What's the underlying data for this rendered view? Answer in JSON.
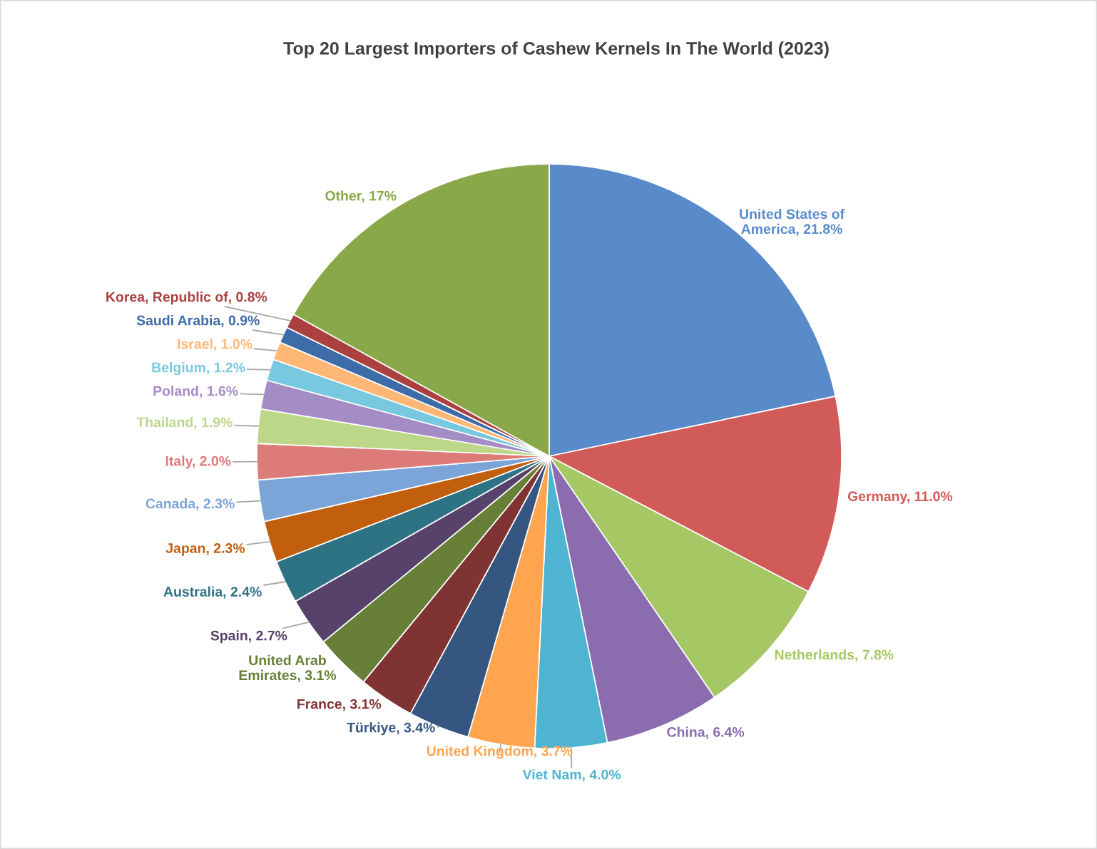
{
  "chart_data": {
    "type": "pie",
    "title": "Top 20 Largest Importers of Cashew Kernels In The World (2023)",
    "categories": [
      "United States of America",
      "Germany",
      "Netherlands",
      "China",
      "Viet Nam",
      "United Kingdom",
      "Türkiye",
      "France",
      "United Arab Emirates",
      "Spain",
      "Australia",
      "Japan",
      "Canada",
      "Italy",
      "Thailand",
      "Poland",
      "Belgium",
      "Israel",
      "Saudi Arabia",
      "Korea, Republic of",
      "Other"
    ],
    "values": [
      21.8,
      11.0,
      7.8,
      6.4,
      4.0,
      3.7,
      3.4,
      3.1,
      3.1,
      2.7,
      2.4,
      2.3,
      2.3,
      2.0,
      1.9,
      1.6,
      1.2,
      1.0,
      0.9,
      0.8,
      17
    ],
    "value_labels": [
      "21.8%",
      "11.0%",
      "7.8%",
      "6.4%",
      "4.0%",
      "3.7%",
      "3.4%",
      "3.1%",
      "3.1%",
      "2.7%",
      "2.4%",
      "2.3%",
      "2.3%",
      "2.0%",
      "1.9%",
      "1.6%",
      "1.2%",
      "1.0%",
      "0.9%",
      "0.8%",
      "17%"
    ],
    "colors": [
      "#598bcb",
      "#d05b58",
      "#a6c864",
      "#8b6cae",
      "#4fb4d2",
      "#ffa44f",
      "#355681",
      "#803333",
      "#687f37",
      "#56426b",
      "#2e7384",
      "#c25f0f",
      "#7ba5d8",
      "#dd7b78",
      "#bdd788",
      "#a48cc4",
      "#78c9df",
      "#ffb775",
      "#3e6ca8",
      "#ab4040",
      "#89a84a"
    ]
  }
}
